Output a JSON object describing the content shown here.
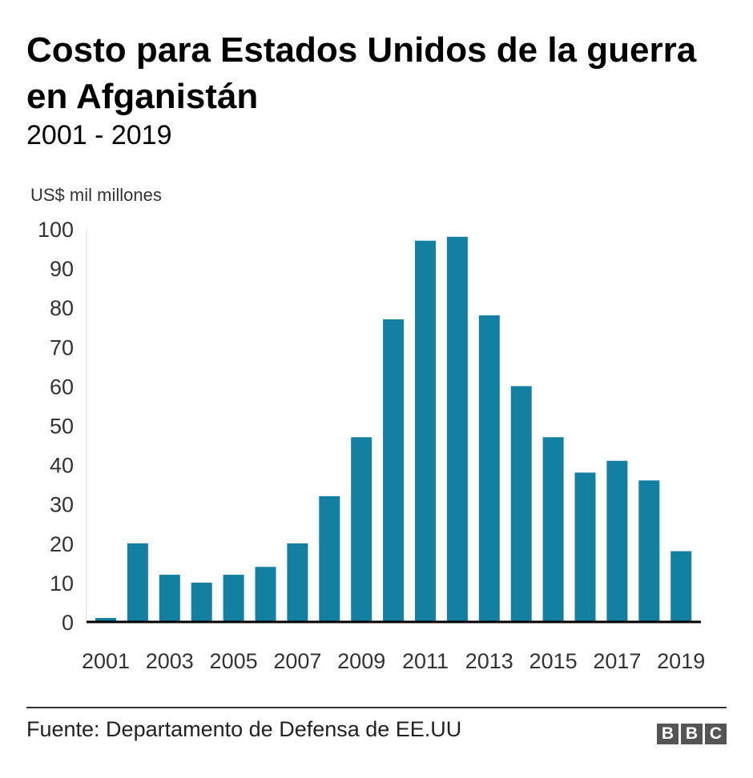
{
  "chart_data": {
    "type": "bar",
    "title": "Costo para Estados Unidos de la guerra en Afganistán",
    "subtitle": "2001 - 2019",
    "ylabel": "US$ mil millones",
    "xlabel": "",
    "categories": [
      "2001",
      "2002",
      "2003",
      "2004",
      "2005",
      "2006",
      "2007",
      "2008",
      "2009",
      "2010",
      "2011",
      "2012",
      "2013",
      "2014",
      "2015",
      "2016",
      "2017",
      "2018",
      "2019"
    ],
    "values": [
      1,
      20,
      12,
      10,
      12,
      14,
      20,
      32,
      47,
      77,
      97,
      98,
      78,
      60,
      47,
      38,
      41,
      36,
      18
    ],
    "x_tick_labels": [
      "2001",
      "2003",
      "2005",
      "2007",
      "2009",
      "2011",
      "2013",
      "2015",
      "2017",
      "2019"
    ],
    "y_tick_labels": [
      "0",
      "10",
      "20",
      "30",
      "40",
      "50",
      "60",
      "70",
      "80",
      "90",
      "100"
    ],
    "ylim": [
      0,
      100
    ],
    "grid": false,
    "bar_color": "#1380A1"
  },
  "footer": {
    "source": "Fuente: Departamento de Defensa de EE.UU",
    "logo": [
      "B",
      "B",
      "C"
    ]
  }
}
